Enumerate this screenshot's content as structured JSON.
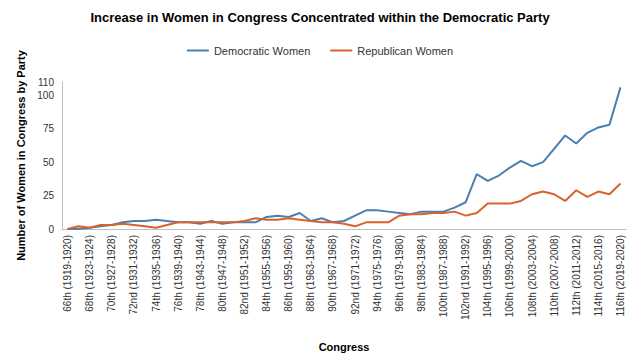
{
  "chart_data": {
    "type": "line",
    "title": "Increase in Women in Congress Concentrated within the Democratic Party",
    "x_label": "Congress",
    "y_label": "Number of Women in Congress by Party",
    "categories": [
      "66th (1919-1920)",
      null,
      "68th (1923-1924)",
      null,
      "70th (1927-1928)",
      null,
      "72nd (1931-1932)",
      null,
      "74th (1935-1936)",
      null,
      "76th (1939-1940)",
      null,
      "78th (1943-1944)",
      null,
      "80th (1947-1948)",
      null,
      "82nd (1951-1952)",
      null,
      "84th (1955-1956)",
      null,
      "86th (1959-1960)",
      null,
      "88th (1963-1964)",
      null,
      "90th (1967-1968)",
      null,
      "92nd (1971-1972)",
      null,
      "94th (1975-1976)",
      null,
      "96th (1979-1980)",
      null,
      "98th (1983-1984)",
      null,
      "100th (1987-1988)",
      null,
      "102nd (1991-1992)",
      null,
      "104th (1995-1996)",
      null,
      "106th (1999-2000)",
      null,
      "108th (2003-2004)",
      null,
      "110th (2007-2008)",
      null,
      "112th (2011-2012)",
      null,
      "114th (2015-2016)",
      null,
      "116th (2019-2020)"
    ],
    "series": [
      {
        "name": "Democratic Women",
        "color": "#4a7fb0",
        "values": [
          0,
          0,
          1,
          2,
          3,
          5,
          6,
          6,
          7,
          6,
          5,
          5,
          4,
          6,
          4,
          5,
          5,
          5,
          9,
          10,
          9,
          12,
          6,
          8,
          5,
          6,
          10,
          14,
          14,
          13,
          12,
          11,
          13,
          13,
          13,
          16,
          20,
          41,
          36,
          40,
          46,
          51,
          47,
          50,
          60,
          70,
          64,
          72,
          76,
          78,
          106
        ]
      },
      {
        "name": "Republican Women",
        "color": "#d9622b",
        "values": [
          0,
          2,
          1,
          3,
          3,
          4,
          3,
          2,
          1,
          3,
          5,
          5,
          5,
          5,
          5,
          5,
          6,
          8,
          7,
          7,
          8,
          7,
          6,
          5,
          5,
          4,
          2,
          5,
          5,
          5,
          10,
          11,
          11,
          12,
          12,
          13,
          10,
          12,
          19,
          19,
          19,
          21,
          26,
          28,
          26,
          21,
          29,
          24,
          28,
          26,
          34
        ]
      }
    ],
    "ylim": [
      0,
      110
    ],
    "yticks": [
      0,
      25,
      50,
      75,
      100
    ],
    "grid": false,
    "legend": "top",
    "marker": "none",
    "line_style": "solid"
  }
}
